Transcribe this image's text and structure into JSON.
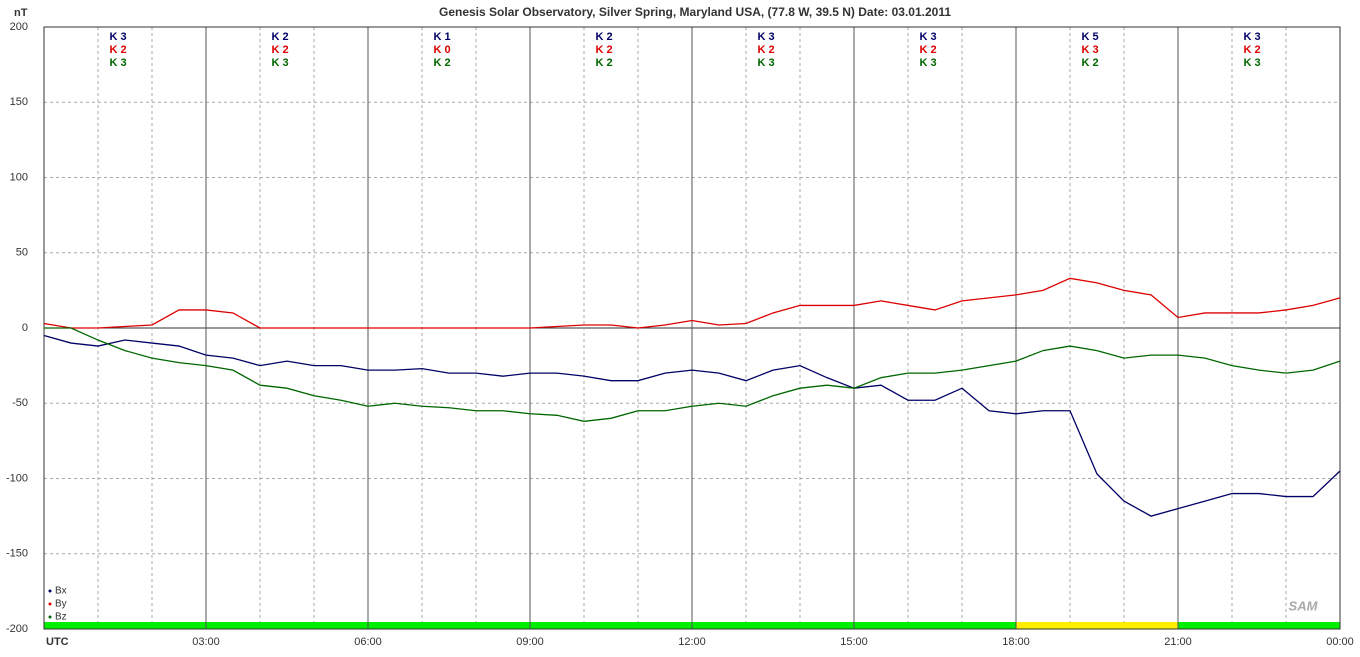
{
  "chart_data": {
    "type": "line",
    "title": "Genesis Solar Observatory, Silver Spring, Maryland USA, (77.8 W, 39.5 N)  Date: 03.01.2011",
    "y_label": "nT",
    "x": [
      0,
      0.5,
      1,
      1.5,
      2,
      2.5,
      3,
      3.5,
      4,
      4.5,
      5,
      5.5,
      6,
      6.5,
      7,
      7.5,
      8,
      8.5,
      9,
      9.5,
      10,
      10.5,
      11,
      11.5,
      12,
      12.5,
      13,
      13.5,
      14,
      14.5,
      15,
      15.5,
      16,
      16.5,
      17,
      17.5,
      18,
      18.5,
      19,
      19.5,
      20,
      20.5,
      21,
      21.5,
      22,
      22.5,
      23,
      23.5,
      24
    ],
    "series": [
      {
        "name": "Bx",
        "color": "#000066",
        "values": [
          -5,
          -10,
          -12,
          -8,
          -10,
          -12,
          -18,
          -20,
          -25,
          -22,
          -25,
          -25,
          -28,
          -28,
          -27,
          -30,
          -30,
          -32,
          -30,
          -30,
          -32,
          -35,
          -35,
          -30,
          -28,
          -30,
          -35,
          -28,
          -25,
          -33,
          -40,
          -38,
          -48,
          -48,
          -40,
          -55,
          -57,
          -55,
          -55,
          -97,
          -115,
          -125,
          -120,
          -115,
          -110,
          -110,
          -112,
          -112,
          -95
        ]
      },
      {
        "name": "By",
        "color": "#dd0000",
        "values": [
          3,
          0,
          0,
          1,
          2,
          12,
          12,
          10,
          0,
          0,
          0,
          0,
          0,
          0,
          0,
          0,
          0,
          0,
          0,
          1,
          2,
          2,
          0,
          2,
          5,
          2,
          3,
          10,
          15,
          15,
          15,
          18,
          15,
          12,
          18,
          20,
          22,
          25,
          33,
          30,
          25,
          22,
          7,
          10,
          10,
          10,
          12,
          15,
          20
        ]
      },
      {
        "name": "Bz",
        "color": "#006600",
        "values": [
          0,
          0,
          -8,
          -15,
          -20,
          -23,
          -25,
          -28,
          -38,
          -40,
          -45,
          -48,
          -52,
          -50,
          -52,
          -53,
          -55,
          -55,
          -57,
          -58,
          -62,
          -60,
          -55,
          -55,
          -52,
          -50,
          -52,
          -45,
          -40,
          -38,
          -40,
          -33,
          -30,
          -30,
          -28,
          -25,
          -22,
          -15,
          -12,
          -15,
          -20,
          -18,
          -18,
          -20,
          -25,
          -28,
          -30,
          -28,
          -22
        ]
      }
    ],
    "xlim": [
      0,
      24
    ],
    "xticks": [
      {
        "value": 0,
        "label": "UTC"
      },
      {
        "value": 3,
        "label": "03:00"
      },
      {
        "value": 6,
        "label": "06:00"
      },
      {
        "value": 9,
        "label": "09:00"
      },
      {
        "value": 12,
        "label": "12:00"
      },
      {
        "value": 15,
        "label": "15:00"
      },
      {
        "value": 18,
        "label": "18:00"
      },
      {
        "value": 21,
        "label": "21:00"
      },
      {
        "value": 24,
        "label": "00:00"
      }
    ],
    "xminor": [
      1,
      2,
      4,
      5,
      7,
      8,
      10,
      11,
      13,
      14,
      16,
      17,
      19,
      20,
      22,
      23
    ],
    "ylim": [
      -200,
      200
    ],
    "yticks": [
      -200,
      -150,
      -100,
      -50,
      0,
      50,
      100,
      150,
      200
    ],
    "grid": true,
    "k_labels": [
      [
        "K 3",
        "K 2",
        "K 3"
      ],
      [
        "K 2",
        "K 2",
        "K 3"
      ],
      [
        "K 1",
        "K 0",
        "K 2"
      ],
      [
        "K 2",
        "K 2",
        "K 2"
      ],
      [
        "K 3",
        "K 2",
        "K 3"
      ],
      [
        "K 3",
        "K 2",
        "K 3"
      ],
      [
        "K 5",
        "K 3",
        "K 2"
      ],
      [
        "K 3",
        "K 2",
        "K 3"
      ]
    ],
    "status_bar": [
      {
        "from": 0,
        "to": 18,
        "color": "#00ee00"
      },
      {
        "from": 18,
        "to": 21,
        "color": "#ffee00"
      },
      {
        "from": 21,
        "to": 24,
        "color": "#00ee00"
      }
    ],
    "logo": "SAM"
  }
}
